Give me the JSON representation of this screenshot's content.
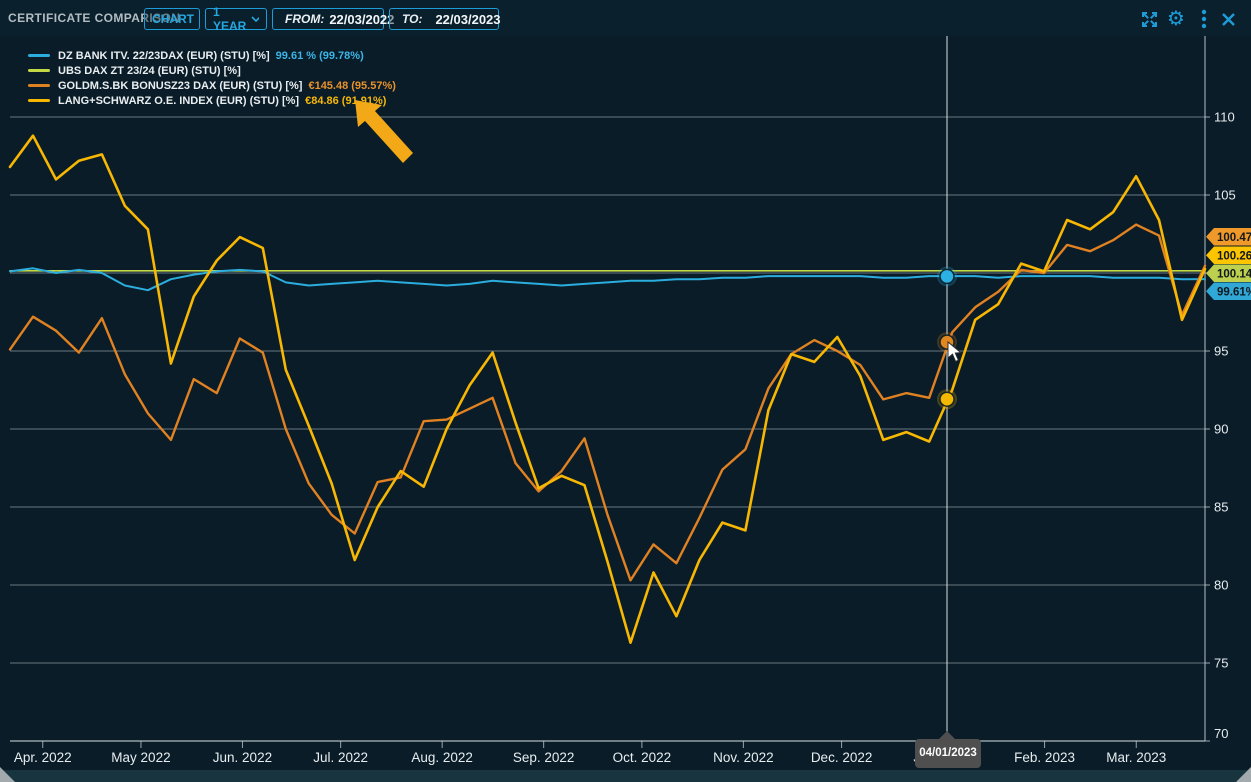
{
  "header": {
    "title": "CERTIFICATE COMPARISON",
    "chart_dropdown": "CHART",
    "range_dropdown": "1 YEAR",
    "from_label": "FROM:",
    "from_value": "22/03/2022",
    "to_label": "TO:",
    "to_value": "22/03/2023"
  },
  "colors": {
    "accent": "#1d9cd8",
    "background": "#0a1c27",
    "header_background": "#0b202d",
    "footer_background": "#17343f",
    "gridline": "#c9d4d9",
    "axis_text": "#e6edf0",
    "title_text": "#b2bcc2",
    "tooltip_background": "#4f4f4f",
    "annotation_arrow": "#f2a817"
  },
  "legend": [
    {
      "label": "DZ BANK ITV. 22/23DAX (EUR) (STU) [%]",
      "value": "99.61 % (99.78%)",
      "color": "#2badde",
      "value_color": "#3bb5e8"
    },
    {
      "label": "UBS DAX ZT 23/24 (EUR) (STU) [%]",
      "value": "",
      "color": "#c3d845",
      "value_color": "#c3d845"
    },
    {
      "label": "GOLDM.S.BK BONUSZ23 DAX (EUR) (STU) [%]",
      "value": "€145.48 (95.57%)",
      "color": "#e08122",
      "value_color": "#e8922d"
    },
    {
      "label": "LANG+SCHWARZ O.E. INDEX (EUR) (STU) [%]",
      "value": "€84.86 (91.91%)",
      "color": "#f7b703",
      "value_color": "#f6b70a"
    }
  ],
  "tooltip": {
    "date": "04/01/2023"
  },
  "chart_data": {
    "type": "line",
    "ylabel": "%",
    "y_ticks": [
      110,
      105,
      100,
      95,
      90,
      85,
      80,
      75,
      70
    ],
    "y_tick_labels_hidden": [
      100
    ],
    "ylim": [
      70,
      110
    ],
    "x_range_days": 365,
    "x_labels": [
      {
        "label": "Apr. 2022",
        "day_offset": 10
      },
      {
        "label": "May 2022",
        "day_offset": 40
      },
      {
        "label": "Jun. 2022",
        "day_offset": 71
      },
      {
        "label": "Jul. 2022",
        "day_offset": 101
      },
      {
        "label": "Aug. 2022",
        "day_offset": 132
      },
      {
        "label": "Sep. 2022",
        "day_offset": 163
      },
      {
        "label": "Oct. 2022",
        "day_offset": 193
      },
      {
        "label": "Nov. 2022",
        "day_offset": 224
      },
      {
        "label": "Dec. 2022",
        "day_offset": 254
      },
      {
        "label": "Jan. 2023",
        "day_offset": 285
      },
      {
        "label": "Feb. 2023",
        "day_offset": 316
      },
      {
        "label": "Mar. 2023",
        "day_offset": 344
      }
    ],
    "series": [
      {
        "name": "UBS DAX ZT 23/24 (EUR) (STU) [%]",
        "color": "#c3d845",
        "width": 1.6,
        "flat_value": 100.14
      },
      {
        "name": "DZ BANK ITV. 22/23DAX (EUR) (STU) [%]",
        "color": "#2badde",
        "width": 2,
        "values": [
          100.1,
          100.3,
          100.0,
          100.2,
          100.0,
          99.2,
          98.9,
          99.6,
          99.9,
          100.1,
          100.2,
          100.1,
          99.4,
          99.2,
          99.3,
          99.4,
          99.5,
          99.4,
          99.3,
          99.2,
          99.3,
          99.5,
          99.4,
          99.3,
          99.2,
          99.3,
          99.4,
          99.5,
          99.5,
          99.6,
          99.6,
          99.7,
          99.7,
          99.8,
          99.8,
          99.8,
          99.8,
          99.8,
          99.7,
          99.7,
          99.8,
          99.8,
          99.8,
          99.7,
          99.8,
          99.8,
          99.8,
          99.8,
          99.7,
          99.7,
          99.7,
          99.6,
          99.61
        ]
      },
      {
        "name": "GOLDM.S.BK BONUSZ23 DAX (EUR) (STU) [%]",
        "color": "#e08122",
        "width": 2.4,
        "values": [
          95.1,
          97.2,
          96.3,
          94.9,
          97.1,
          93.5,
          91.0,
          89.3,
          93.2,
          92.3,
          95.8,
          94.9,
          90.0,
          86.5,
          84.5,
          83.3,
          86.6,
          86.9,
          90.5,
          90.6,
          91.3,
          92.0,
          87.8,
          86.0,
          87.3,
          89.4,
          84.5,
          80.3,
          82.6,
          81.4,
          84.3,
          87.4,
          88.7,
          92.6,
          94.8,
          95.7,
          95.0,
          94.1,
          91.9,
          92.3,
          92.0,
          96.2,
          97.8,
          98.8,
          100.2,
          100.0,
          101.8,
          101.4,
          102.1,
          103.1,
          102.4,
          97.3,
          100.47
        ]
      },
      {
        "name": "LANG+SCHWARZ O.E. INDEX (EUR) (STU) [%]",
        "color": "#f7b703",
        "width": 2.6,
        "values": [
          106.8,
          108.8,
          106.0,
          107.2,
          107.6,
          104.3,
          102.8,
          94.2,
          98.5,
          100.8,
          102.3,
          101.6,
          93.8,
          90.2,
          86.5,
          81.6,
          85.0,
          87.3,
          86.3,
          90.0,
          92.8,
          94.9,
          90.4,
          86.2,
          87.0,
          86.4,
          81.5,
          76.3,
          80.8,
          78.0,
          81.6,
          84.0,
          83.5,
          91.2,
          94.8,
          94.3,
          95.9,
          93.4,
          89.3,
          89.8,
          89.2,
          92.5,
          97.0,
          98.0,
          100.6,
          100.1,
          103.4,
          102.8,
          103.9,
          106.2,
          103.4,
          97.0,
          100.26
        ]
      }
    ],
    "crosshair": {
      "date": "04/01/2023",
      "position_fraction": 0.7841,
      "markers": [
        {
          "series": "DZ BANK ITV. 22/23DAX (EUR) (STU) [%]",
          "value": 99.78,
          "color": "#2cb1e4"
        },
        {
          "series": "GOLDM.S.BK BONUSZ23 DAX (EUR) (STU) [%]",
          "value": 95.57,
          "color": "#e2861f"
        },
        {
          "series": "LANG+SCHWARZ O.E. INDEX (EUR) (STU) [%]",
          "value": 91.91,
          "color": "#f5b801"
        }
      ]
    },
    "end_tags": [
      {
        "label": "100.47%",
        "color": "#f0992b"
      },
      {
        "label": "100.26%",
        "color": "#fdc400"
      },
      {
        "label": "100.14%",
        "color": "#bccf4f"
      },
      {
        "label": "99.61%",
        "color": "#2fa8d8"
      }
    ]
  }
}
